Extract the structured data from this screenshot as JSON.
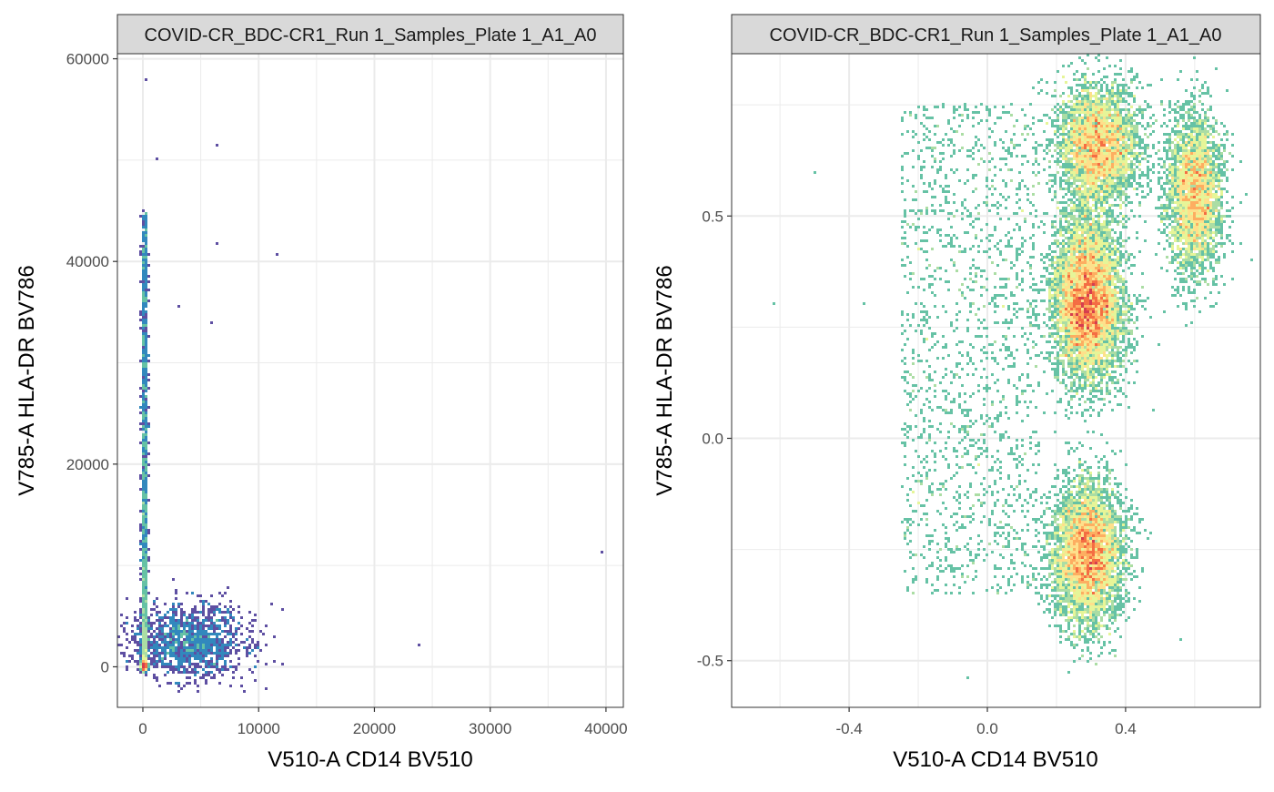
{
  "chart_data": [
    {
      "type": "scatter",
      "render": "hexbin density",
      "strip_label": "COVID-CR_BDC-CR1_Run 1_Samples_Plate 1_A1_A0",
      "xlabel": "V510-A CD14 BV510",
      "ylabel": "V785-A HLA-DR BV786",
      "xlim": [
        -2200,
        41500
      ],
      "ylim": [
        -4000,
        60500
      ],
      "x_ticks": [
        0,
        10000,
        20000,
        30000,
        40000
      ],
      "x_tick_labels": [
        "0",
        "10000",
        "20000",
        "30000",
        "40000"
      ],
      "y_ticks": [
        0,
        20000,
        40000,
        60000
      ],
      "y_tick_labels": [
        "0",
        "20000",
        "40000",
        "60000"
      ],
      "grid": true,
      "populations": [
        {
          "name": "lymphocytes",
          "x_center": 100,
          "y_center": 100,
          "x_spread": 80,
          "y_spread": 200,
          "weight": 1.0
        },
        {
          "name": "vertical-streak",
          "x_center": 150,
          "y_range": [
            0,
            45000
          ],
          "weight": 0.6
        },
        {
          "name": "monocytes",
          "x_center": 4000,
          "y_center": 2500,
          "x_spread": 2500,
          "y_spread": 1800,
          "weight": 0.35
        }
      ],
      "outliers": [
        [
          39600,
          11200
        ],
        [
          23800,
          2200
        ],
        [
          11600,
          40700
        ],
        [
          6400,
          51500
        ],
        [
          6400,
          41700
        ],
        [
          1300,
          50000
        ],
        [
          350,
          58000
        ],
        [
          5900,
          34000
        ],
        [
          3100,
          35700
        ]
      ]
    },
    {
      "type": "scatter",
      "render": "hexbin density",
      "strip_label": "COVID-CR_BDC-CR1_Run 1_Samples_Plate 1_A1_A0",
      "xlabel": "V510-A CD14 BV510",
      "ylabel": "V785-A HLA-DR BV786",
      "xlim": [
        -0.74,
        0.79
      ],
      "ylim": [
        -0.605,
        0.865
      ],
      "x_ticks": [
        -0.4,
        0.0,
        0.4
      ],
      "x_tick_labels": [
        "-0.4",
        "0.0",
        "0.4"
      ],
      "y_ticks": [
        -0.5,
        0.0,
        0.5
      ],
      "y_tick_labels": [
        "-0.5",
        "0.0",
        "0.5"
      ],
      "grid": true,
      "populations": [
        {
          "name": "hla-dr-high",
          "x_center": 0.29,
          "y_center": 0.31,
          "x_spread": 0.05,
          "y_spread": 0.09,
          "weight": 1.0
        },
        {
          "name": "hla-dr-low",
          "x_center": 0.29,
          "y_center": -0.26,
          "x_spread": 0.05,
          "y_spread": 0.08,
          "weight": 0.75
        },
        {
          "name": "top-cluster",
          "x_center": 0.32,
          "y_center": 0.66,
          "x_spread": 0.06,
          "y_spread": 0.07,
          "weight": 0.6
        },
        {
          "name": "right-cluster",
          "x_center": 0.6,
          "y_center": 0.55,
          "x_spread": 0.04,
          "y_spread": 0.09,
          "weight": 0.5
        },
        {
          "name": "diffuse",
          "x_range": [
            -0.25,
            0.15
          ],
          "y_range": [
            -0.35,
            0.75
          ],
          "weight": 0.25
        }
      ],
      "outliers": [
        [
          -0.62,
          0.3
        ],
        [
          -0.5,
          0.6
        ],
        [
          -0.36,
          0.3
        ],
        [
          -0.06,
          -0.54
        ],
        [
          0.56,
          -0.45
        ],
        [
          0.66,
          0.83
        ]
      ]
    }
  ],
  "colors": {
    "low": "#5e4fa2",
    "mid1": "#3288bd",
    "mid2": "#66c2a5",
    "mid3": "#abdda4",
    "mid4": "#e6f598",
    "mid5": "#fee08b",
    "mid6": "#fdae61",
    "mid7": "#f46d43",
    "high": "#d53e4f",
    "strip_bg": "#d9d9d9",
    "grid": "#ebebeb",
    "panel_border": "#333333"
  }
}
